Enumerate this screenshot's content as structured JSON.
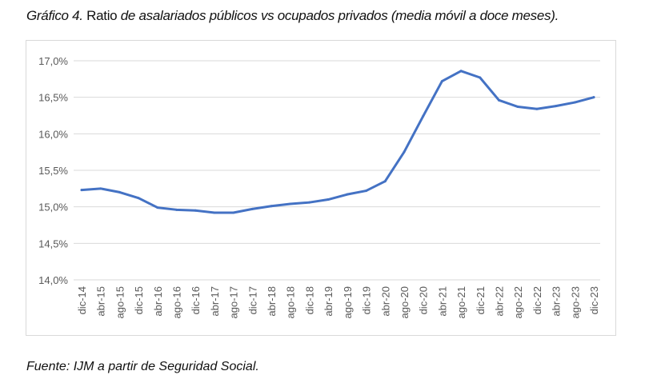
{
  "title": {
    "prefix": "Gráfico 4.",
    "word": "Ratio",
    "rest": "de asalariados públicos vs ocupados privados (media móvil a doce meses)."
  },
  "source": "Fuente: IJM a partir de Seguridad Social.",
  "chart_data": {
    "type": "line",
    "title": "Gráfico 4. Ratio de asalariados públicos vs ocupados privados (media móvil a doce meses).",
    "xlabel": "",
    "ylabel": "",
    "ylim": [
      14.0,
      17.0
    ],
    "yticks": [
      "14,0%",
      "14,5%",
      "15,0%",
      "15,5%",
      "16,0%",
      "16,5%",
      "17,0%"
    ],
    "grid": "horizontal",
    "color": "#4472C4",
    "categories": [
      "dic-14",
      "abr-15",
      "ago-15",
      "dic-15",
      "abr-16",
      "ago-16",
      "dic-16",
      "abr-17",
      "ago-17",
      "dic-17",
      "abr-18",
      "ago-18",
      "dic-18",
      "abr-19",
      "ago-19",
      "dic-19",
      "abr-20",
      "ago-20",
      "dic-20",
      "abr-21",
      "ago-21",
      "dic-21",
      "abr-22",
      "ago-22",
      "dic-22",
      "abr-23",
      "ago-23",
      "dic-23"
    ],
    "values": [
      15.23,
      15.25,
      15.2,
      15.12,
      14.99,
      14.96,
      14.95,
      14.92,
      14.92,
      14.97,
      15.01,
      15.04,
      15.06,
      15.1,
      15.17,
      15.22,
      15.35,
      15.75,
      16.24,
      16.72,
      16.86,
      16.77,
      16.46,
      16.37,
      16.34,
      16.38,
      16.43,
      16.5
    ]
  }
}
